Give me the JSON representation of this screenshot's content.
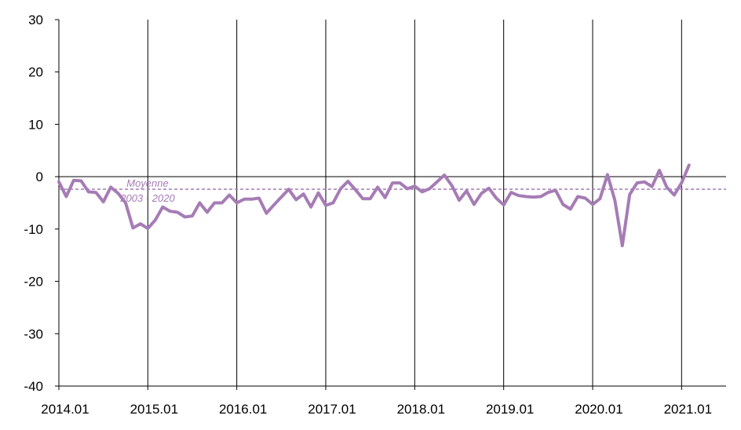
{
  "chart_data": {
    "type": "line",
    "title": "",
    "xlabel": "",
    "ylabel": "",
    "ylim": [
      -40,
      30
    ],
    "yticks": [
      30,
      20,
      10,
      0,
      -10,
      -20,
      -30,
      -40
    ],
    "xlim": [
      2014.0,
      2021.5
    ],
    "xticks": [
      {
        "label": "2014.01",
        "value": 2014.0
      },
      {
        "label": "2015.01",
        "value": 2015.0
      },
      {
        "label": "2016.01",
        "value": 2016.0
      },
      {
        "label": "2017.01",
        "value": 2017.0
      },
      {
        "label": "2018.01",
        "value": 2018.0
      },
      {
        "label": "2019.01",
        "value": 2019.0
      },
      {
        "label": "2020.01",
        "value": 2020.0
      },
      {
        "label": "2021.01",
        "value": 2021.0
      }
    ],
    "grid": "vertical",
    "series_color": "#a67cb5",
    "reference_line": {
      "value": -2.4,
      "label_line1": "Moyenne",
      "label_line2": "2003 - 2020",
      "color": "#a67cb5",
      "style": "dashed"
    },
    "series": [
      {
        "values": [
          -1.0,
          -3.8,
          -0.7,
          -0.8,
          -2.9,
          -3.0,
          -4.8,
          -2.0,
          -3.2,
          -5.0,
          -9.8,
          -9.0,
          -9.9,
          -8.3,
          -5.8,
          -6.6,
          -6.8,
          -7.7,
          -7.5,
          -5.0,
          -6.8,
          -5.0,
          -5.0,
          -3.5,
          -5.0,
          -4.3,
          -4.3,
          -4.1,
          -7.0,
          -5.4,
          -3.9,
          -2.4,
          -4.4,
          -3.3,
          -5.8,
          -3.1,
          -5.5,
          -5.0,
          -2.3,
          -0.9,
          -2.5,
          -4.2,
          -4.2,
          -2.0,
          -4.0,
          -1.2,
          -1.2,
          -2.3,
          -1.8,
          -2.9,
          -2.3,
          -1.0,
          0.3,
          -1.7,
          -4.5,
          -2.7,
          -5.3,
          -3.2,
          -2.2,
          -4.1,
          -5.4,
          -3.0,
          -3.6,
          -3.8,
          -3.9,
          -3.8,
          -3.0,
          -2.6,
          -5.3,
          -6.2,
          -3.8,
          -4.1,
          -5.3,
          -4.2,
          0.4,
          -4.5,
          -13.2,
          -3.4,
          -1.2,
          -1.0,
          -1.9,
          1.2,
          -2.0,
          -3.5,
          -1.2,
          2.2
        ]
      }
    ]
  }
}
